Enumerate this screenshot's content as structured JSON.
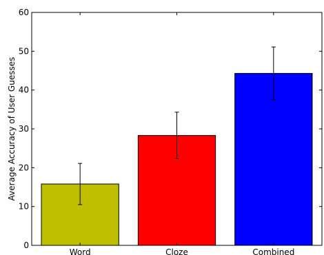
{
  "chart_data": {
    "type": "bar",
    "title": "",
    "xlabel": "",
    "ylabel": "Average Accuracy of User Guesses",
    "categories": [
      "Word",
      "Cloze",
      "Combined"
    ],
    "values": [
      15.8,
      28.3,
      44.3
    ],
    "error": [
      5.3,
      6.0,
      6.8
    ],
    "colors": [
      "#bfbf00",
      "#ff0000",
      "#0000ff"
    ],
    "ylim": [
      0,
      60
    ],
    "yticks": [
      0,
      10,
      20,
      30,
      40,
      50,
      60
    ],
    "grid": false,
    "legend": "none"
  }
}
